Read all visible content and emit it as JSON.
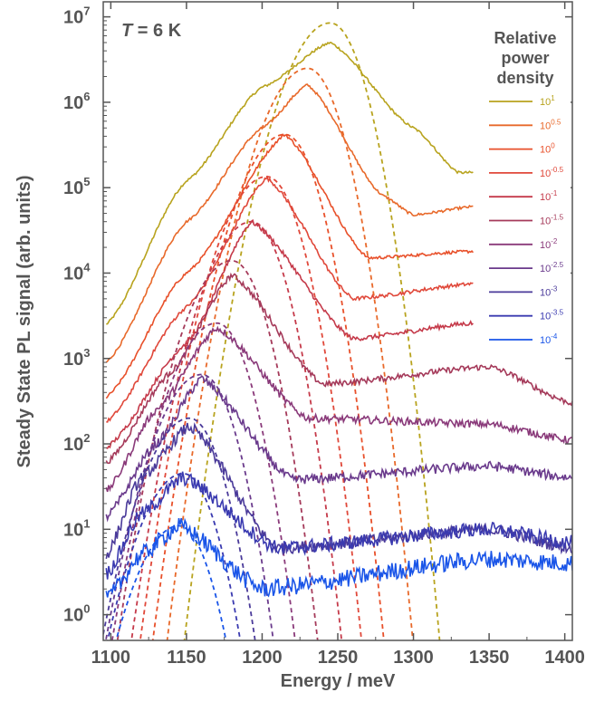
{
  "chart_data": {
    "type": "line",
    "annotation": {
      "variable": "T",
      "rest": " = 6 K"
    },
    "xlabel": "Energy / meV",
    "ylabel": "Steady State PL signal (arb. units)",
    "xlim": [
      1095,
      1405
    ],
    "ylim": [
      0.5,
      15000000
    ],
    "yscale": "log",
    "xticks": [
      1100,
      1150,
      1200,
      1250,
      1300,
      1350,
      1400
    ],
    "yticks": [
      {
        "value": 1,
        "base": "10",
        "exp": "0"
      },
      {
        "value": 10,
        "base": "10",
        "exp": "1"
      },
      {
        "value": 100,
        "base": "10",
        "exp": "2"
      },
      {
        "value": 1000,
        "base": "10",
        "exp": "3"
      },
      {
        "value": 10000,
        "base": "10",
        "exp": "4"
      },
      {
        "value": 100000,
        "base": "10",
        "exp": "5"
      },
      {
        "value": 1000000,
        "base": "10",
        "exp": "6"
      },
      {
        "value": 10000000,
        "base": "10",
        "exp": "7"
      }
    ],
    "legend": {
      "title": [
        "Relative",
        "power",
        "density"
      ],
      "placement": "top-right"
    },
    "series": [
      {
        "label_base": "10",
        "label_exp": "1",
        "color": "#b8a31e",
        "peak_energy": 1245,
        "peak_value": 5000000,
        "fit_peak_value": 8500000,
        "x_end": 1340,
        "x": [
          1097,
          1150,
          1200,
          1245,
          1300,
          1330,
          1340
        ],
        "y": [
          2500,
          120000,
          1500000,
          5000000,
          500000,
          150000,
          150000
        ]
      },
      {
        "label_base": "10",
        "label_exp": "0.5",
        "color": "#e8692a",
        "peak_energy": 1230,
        "peak_value": 1600000,
        "fit_peak_value": 2500000,
        "x_end": 1340,
        "x": [
          1097,
          1150,
          1200,
          1230,
          1280,
          1300,
          1340
        ],
        "y": [
          900,
          40000,
          500000,
          1600000,
          80000,
          48000,
          60000
        ]
      },
      {
        "label_base": "10",
        "label_exp": "0",
        "color": "#e8502a",
        "peak_energy": 1215,
        "peak_value": 420000,
        "fit_peak_value": 420000,
        "x_end": 1340,
        "x": [
          1097,
          1150,
          1215,
          1270,
          1340
        ],
        "y": [
          350,
          10000,
          420000,
          15000,
          18000
        ]
      },
      {
        "label_base": "10",
        "label_exp": "-0.5",
        "color": "#e0483a",
        "peak_energy": 1203,
        "peak_value": 130000,
        "fit_peak_value": 135000,
        "x_end": 1340,
        "x": [
          1097,
          1150,
          1203,
          1260,
          1340
        ],
        "y": [
          180,
          4000,
          130000,
          5000,
          7500
        ]
      },
      {
        "label_base": "10",
        "label_exp": "-1",
        "color": "#c53a4a",
        "peak_energy": 1193,
        "peak_value": 40000,
        "fit_peak_value": 40000,
        "x_end": 1340,
        "x": [
          1097,
          1150,
          1193,
          1260,
          1340
        ],
        "y": [
          90,
          1500,
          40000,
          1700,
          2600
        ]
      },
      {
        "label_base": "10",
        "label_exp": "-1.5",
        "color": "#a53a5a",
        "peak_energy": 1180,
        "peak_value": 9500,
        "fit_peak_value": 14000,
        "x_end": 1405,
        "x": [
          1097,
          1140,
          1180,
          1240,
          1350,
          1405
        ],
        "y": [
          60,
          700,
          9500,
          500,
          800,
          300
        ]
      },
      {
        "label_base": "10",
        "label_exp": "-2",
        "color": "#8a3a7a",
        "peak_energy": 1170,
        "peak_value": 2300,
        "fit_peak_value": 2600,
        "x_end": 1405,
        "x": [
          1097,
          1130,
          1170,
          1230,
          1350,
          1405
        ],
        "y": [
          28,
          250,
          2300,
          200,
          170,
          110
        ]
      },
      {
        "label_base": "10",
        "label_exp": "-2.5",
        "color": "#6a3a8c",
        "peak_energy": 1160,
        "peak_value": 580,
        "fit_peak_value": 650,
        "x_end": 1405,
        "x": [
          1097,
          1130,
          1160,
          1220,
          1350,
          1405
        ],
        "y": [
          14,
          100,
          580,
          38,
          55,
          40
        ]
      },
      {
        "label_base": "10",
        "label_exp": "-3",
        "color": "#4a3a9a",
        "peak_energy": 1152,
        "peak_value": 160,
        "fit_peak_value": 200,
        "x_end": 1405,
        "x": [
          1097,
          1120,
          1152,
          1210,
          1350,
          1405
        ],
        "y": [
          5,
          40,
          160,
          6,
          10,
          6
        ]
      },
      {
        "label_base": "10",
        "label_exp": "-3.5",
        "color": "#3a3ab0",
        "peak_energy": 1148,
        "peak_value": 40,
        "fit_peak_value": 45,
        "x_end": 1405,
        "x": [
          1097,
          1120,
          1148,
          1210,
          1350,
          1405
        ],
        "y": [
          3,
          15,
          40,
          6,
          10,
          7
        ]
      },
      {
        "label_base": "10",
        "label_exp": "-4",
        "color": "#1a55e8",
        "peak_energy": 1145,
        "peak_value": 11,
        "fit_peak_value": 11,
        "x_end": 1405,
        "x": [
          1097,
          1120,
          1145,
          1200,
          1350,
          1405
        ],
        "y": [
          1.5,
          5,
          11,
          2,
          4.5,
          4
        ]
      }
    ]
  }
}
